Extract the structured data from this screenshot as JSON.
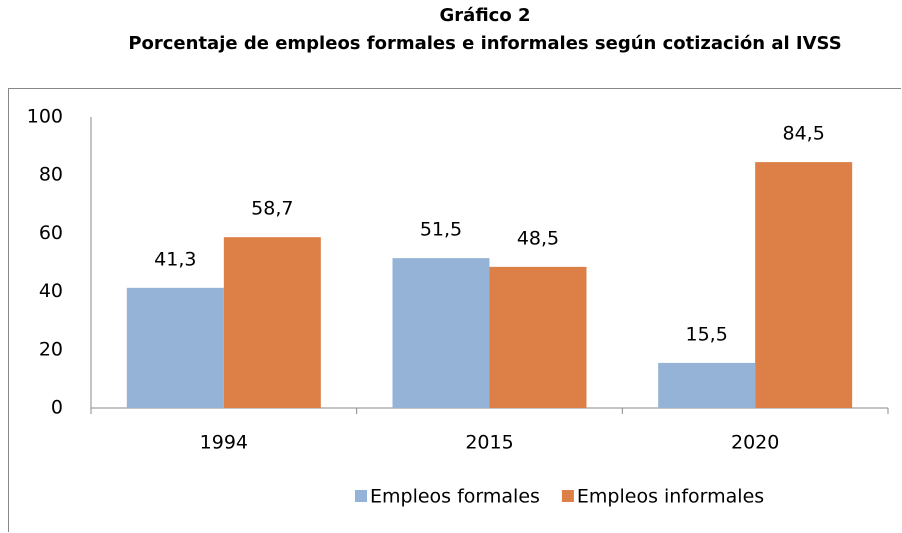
{
  "chart_data": {
    "type": "bar",
    "title": "Gráfico 2",
    "subtitle": "Porcentaje de empleos formales e informales según cotización al IVSS",
    "categories": [
      "1994",
      "2015",
      "2020"
    ],
    "series": [
      {
        "name": "Empleos formales",
        "color": "#95b3d7",
        "values": [
          41.3,
          51.5,
          15.5
        ],
        "value_labels": [
          "41,3",
          "51,5",
          "15,5"
        ]
      },
      {
        "name": "Empleos informales",
        "color": "#dd8047",
        "values": [
          58.7,
          48.5,
          84.5
        ],
        "value_labels": [
          "58,7",
          "48,5",
          "84,5"
        ]
      }
    ],
    "ylim": [
      0,
      100
    ],
    "yticks": [
      0,
      20,
      40,
      60,
      80,
      100
    ],
    "grid": false,
    "legend": "bottom"
  }
}
